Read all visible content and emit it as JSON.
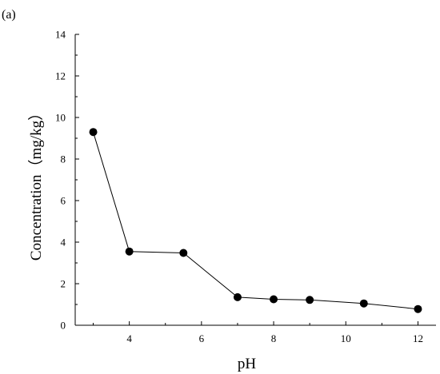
{
  "panel_label": "(a)",
  "chart_data": {
    "type": "line",
    "title": "",
    "xlabel": "pH",
    "ylabel": "Concentration（mg/kg）",
    "xlim": [
      2.5,
      12.5
    ],
    "ylim": [
      0,
      14
    ],
    "xticks": [
      4,
      6,
      8,
      10,
      12
    ],
    "yticks": [
      0,
      2,
      4,
      6,
      8,
      10,
      12,
      14
    ],
    "grid": false,
    "legend": "none",
    "marker": "filled-circle",
    "line_color": "#000000",
    "series": [
      {
        "x": [
          3,
          4,
          5.5,
          7,
          8,
          9,
          10.5,
          12
        ],
        "y": [
          9.3,
          3.55,
          3.48,
          1.35,
          1.25,
          1.22,
          1.05,
          0.78
        ]
      }
    ]
  }
}
